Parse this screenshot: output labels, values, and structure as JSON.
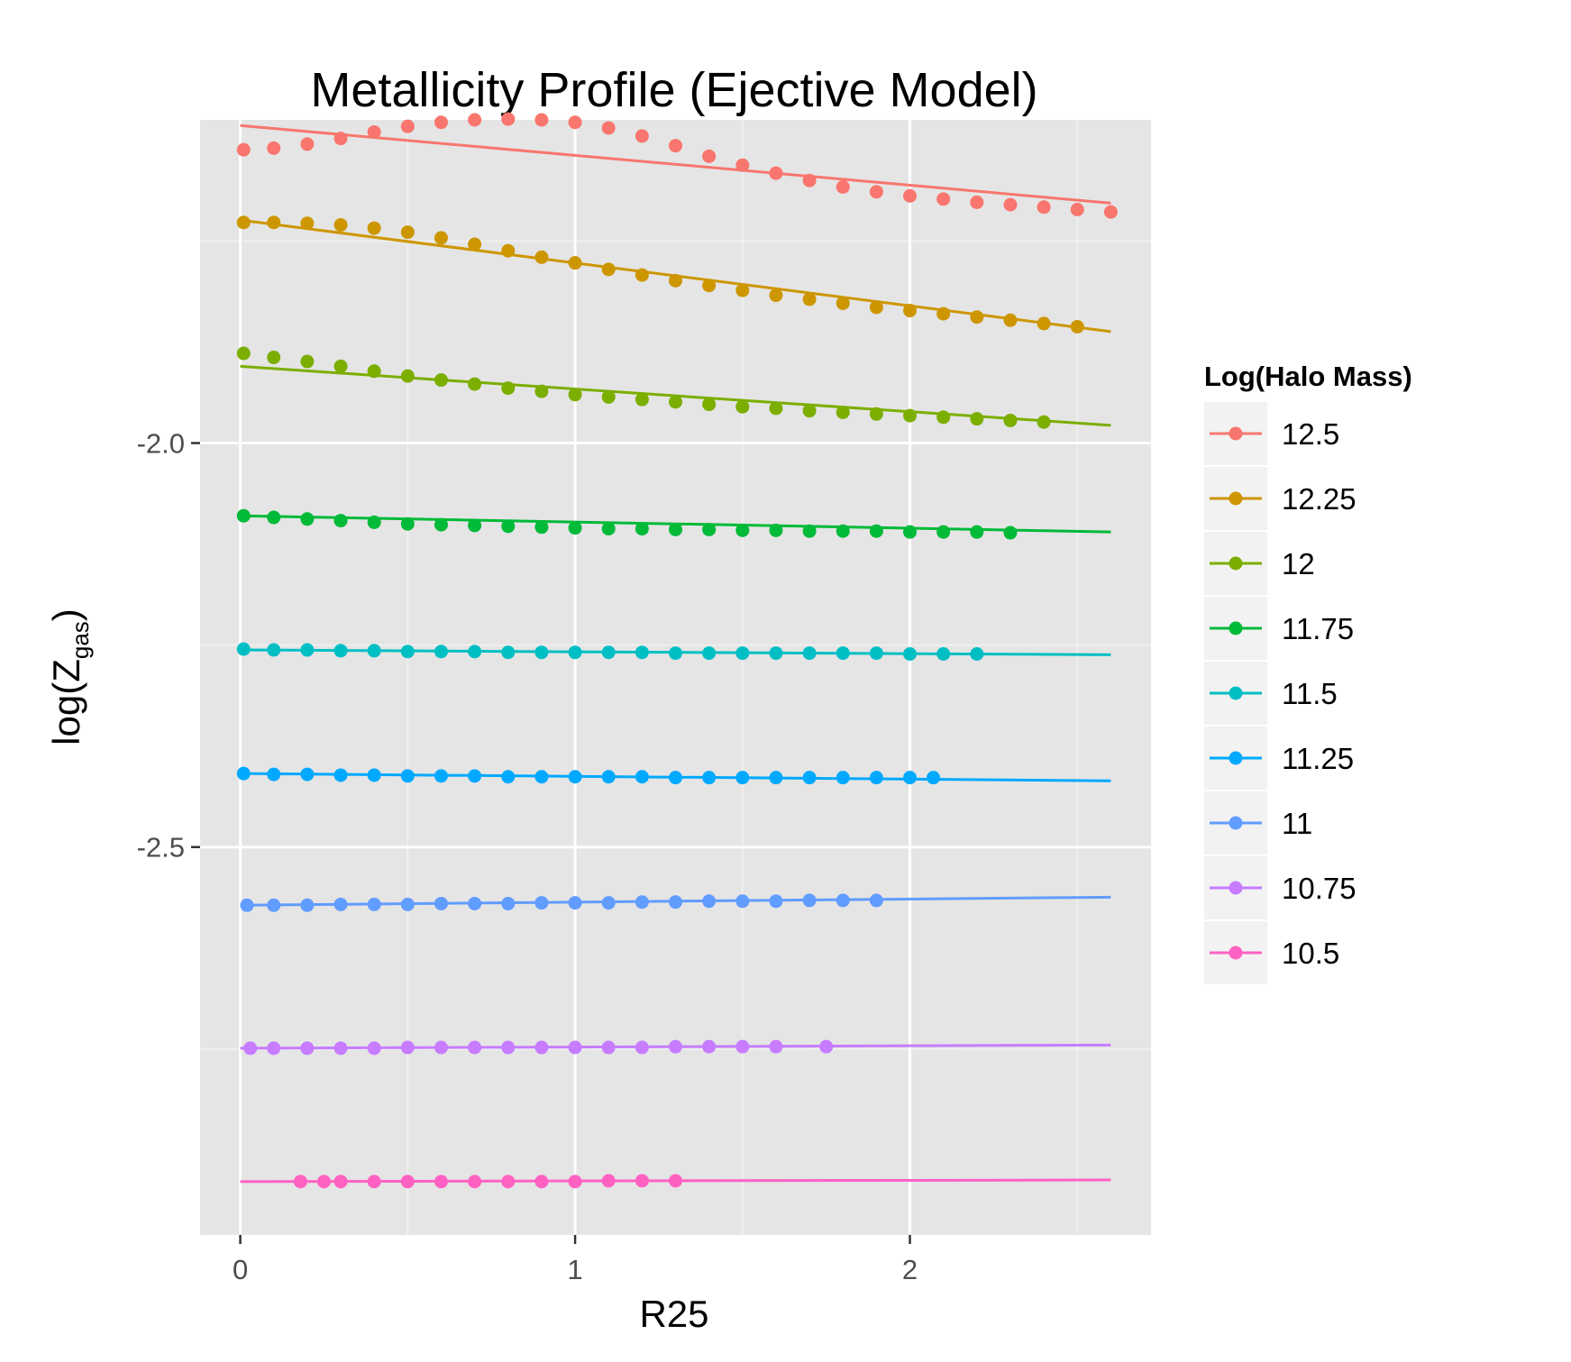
{
  "chart_data": {
    "type": "scatter",
    "title": "Metallicity Profile (Ejective Model)",
    "xlabel": "R25",
    "ylabel": "log(Z",
    "ylabel_sub": "gas",
    "ylabel_close": ")",
    "xlim": [
      -0.12,
      2.72
    ],
    "ylim": [
      -2.98,
      -1.6
    ],
    "x_ticks": [
      0,
      1,
      2
    ],
    "x_tick_labels": [
      "0",
      "1",
      "2"
    ],
    "x_minor_ticks": [
      0.5,
      1.5,
      2.5
    ],
    "y_ticks": [
      -2.0,
      -2.5
    ],
    "y_tick_labels": [
      "-2.0",
      "-2.5"
    ],
    "y_minor_ticks": [
      -1.75,
      -2.25,
      -2.75
    ],
    "grid": true,
    "legend": {
      "title": "Log(Halo Mass)",
      "position": "right"
    },
    "series": [
      {
        "name": "12.5",
        "color": "#F8766D",
        "points": [
          [
            0.01,
            -1.637
          ],
          [
            0.1,
            -1.635
          ],
          [
            0.2,
            -1.63
          ],
          [
            0.3,
            -1.623
          ],
          [
            0.4,
            -1.615
          ],
          [
            0.5,
            -1.608
          ],
          [
            0.6,
            -1.603
          ],
          [
            0.7,
            -1.6
          ],
          [
            0.8,
            -1.599
          ],
          [
            0.9,
            -1.6
          ],
          [
            1.0,
            -1.603
          ],
          [
            1.1,
            -1.61
          ],
          [
            1.2,
            -1.62
          ],
          [
            1.3,
            -1.632
          ],
          [
            1.4,
            -1.645
          ],
          [
            1.5,
            -1.656
          ],
          [
            1.6,
            -1.666
          ],
          [
            1.7,
            -1.675
          ],
          [
            1.8,
            -1.683
          ],
          [
            1.9,
            -1.689
          ],
          [
            2.0,
            -1.694
          ],
          [
            2.1,
            -1.698
          ],
          [
            2.2,
            -1.702
          ],
          [
            2.3,
            -1.705
          ],
          [
            2.4,
            -1.708
          ],
          [
            2.5,
            -1.711
          ],
          [
            2.6,
            -1.714
          ]
        ],
        "fit": [
          [
            0.0,
            -1.607
          ],
          [
            2.6,
            -1.703
          ]
        ]
      },
      {
        "name": "12.25",
        "color": "#CD9600",
        "points": [
          [
            0.01,
            -1.727
          ],
          [
            0.1,
            -1.727
          ],
          [
            0.2,
            -1.728
          ],
          [
            0.3,
            -1.73
          ],
          [
            0.4,
            -1.734
          ],
          [
            0.5,
            -1.739
          ],
          [
            0.6,
            -1.746
          ],
          [
            0.7,
            -1.754
          ],
          [
            0.8,
            -1.762
          ],
          [
            0.9,
            -1.77
          ],
          [
            1.0,
            -1.777
          ],
          [
            1.1,
            -1.785
          ],
          [
            1.2,
            -1.792
          ],
          [
            1.3,
            -1.799
          ],
          [
            1.4,
            -1.805
          ],
          [
            1.5,
            -1.811
          ],
          [
            1.6,
            -1.817
          ],
          [
            1.7,
            -1.822
          ],
          [
            1.8,
            -1.827
          ],
          [
            1.9,
            -1.832
          ],
          [
            2.0,
            -1.836
          ],
          [
            2.1,
            -1.84
          ],
          [
            2.2,
            -1.844
          ],
          [
            2.3,
            -1.848
          ],
          [
            2.4,
            -1.852
          ],
          [
            2.5,
            -1.856
          ]
        ],
        "fit": [
          [
            0.0,
            -1.724
          ],
          [
            2.6,
            -1.862
          ]
        ]
      },
      {
        "name": "12",
        "color": "#7CAE00",
        "points": [
          [
            0.01,
            -1.889
          ],
          [
            0.1,
            -1.894
          ],
          [
            0.2,
            -1.899
          ],
          [
            0.3,
            -1.905
          ],
          [
            0.4,
            -1.911
          ],
          [
            0.5,
            -1.917
          ],
          [
            0.6,
            -1.922
          ],
          [
            0.7,
            -1.927
          ],
          [
            0.8,
            -1.932
          ],
          [
            0.9,
            -1.936
          ],
          [
            1.0,
            -1.94
          ],
          [
            1.1,
            -1.943
          ],
          [
            1.2,
            -1.946
          ],
          [
            1.3,
            -1.949
          ],
          [
            1.4,
            -1.952
          ],
          [
            1.5,
            -1.955
          ],
          [
            1.6,
            -1.957
          ],
          [
            1.7,
            -1.96
          ],
          [
            1.8,
            -1.962
          ],
          [
            1.9,
            -1.964
          ],
          [
            2.0,
            -1.966
          ],
          [
            2.1,
            -1.968
          ],
          [
            2.2,
            -1.97
          ],
          [
            2.3,
            -1.972
          ],
          [
            2.4,
            -1.974
          ]
        ],
        "fit": [
          [
            0.0,
            -1.905
          ],
          [
            2.6,
            -1.978
          ]
        ]
      },
      {
        "name": "11.75",
        "color": "#00BA38",
        "points": [
          [
            0.01,
            -2.09
          ],
          [
            0.1,
            -2.092
          ],
          [
            0.2,
            -2.094
          ],
          [
            0.3,
            -2.096
          ],
          [
            0.4,
            -2.098
          ],
          [
            0.5,
            -2.1
          ],
          [
            0.6,
            -2.101
          ],
          [
            0.7,
            -2.102
          ],
          [
            0.8,
            -2.103
          ],
          [
            0.9,
            -2.104
          ],
          [
            1.0,
            -2.105
          ],
          [
            1.1,
            -2.106
          ],
          [
            1.2,
            -2.106
          ],
          [
            1.3,
            -2.107
          ],
          [
            1.4,
            -2.107
          ],
          [
            1.5,
            -2.108
          ],
          [
            1.6,
            -2.108
          ],
          [
            1.7,
            -2.109
          ],
          [
            1.8,
            -2.109
          ],
          [
            1.9,
            -2.109
          ],
          [
            2.0,
            -2.11
          ],
          [
            2.1,
            -2.11
          ],
          [
            2.2,
            -2.11
          ],
          [
            2.3,
            -2.111
          ]
        ],
        "fit": [
          [
            0.0,
            -2.09
          ],
          [
            2.6,
            -2.11
          ]
        ]
      },
      {
        "name": "11.5",
        "color": "#00BFC4",
        "points": [
          [
            0.01,
            -2.255
          ],
          [
            0.1,
            -2.256
          ],
          [
            0.2,
            -2.256
          ],
          [
            0.3,
            -2.257
          ],
          [
            0.4,
            -2.257
          ],
          [
            0.5,
            -2.258
          ],
          [
            0.6,
            -2.258
          ],
          [
            0.7,
            -2.258
          ],
          [
            0.8,
            -2.259
          ],
          [
            0.9,
            -2.259
          ],
          [
            1.0,
            -2.259
          ],
          [
            1.1,
            -2.259
          ],
          [
            1.2,
            -2.259
          ],
          [
            1.3,
            -2.26
          ],
          [
            1.4,
            -2.26
          ],
          [
            1.5,
            -2.26
          ],
          [
            1.6,
            -2.26
          ],
          [
            1.7,
            -2.26
          ],
          [
            1.8,
            -2.26
          ],
          [
            1.9,
            -2.26
          ],
          [
            2.0,
            -2.261
          ],
          [
            2.1,
            -2.261
          ],
          [
            2.2,
            -2.261
          ]
        ],
        "fit": [
          [
            0.0,
            -2.256
          ],
          [
            2.6,
            -2.262
          ]
        ]
      },
      {
        "name": "11.25",
        "color": "#00A9FF",
        "points": [
          [
            0.01,
            -2.409
          ],
          [
            0.1,
            -2.41
          ],
          [
            0.2,
            -2.41
          ],
          [
            0.3,
            -2.411
          ],
          [
            0.4,
            -2.411
          ],
          [
            0.5,
            -2.412
          ],
          [
            0.6,
            -2.412
          ],
          [
            0.7,
            -2.412
          ],
          [
            0.8,
            -2.413
          ],
          [
            0.9,
            -2.413
          ],
          [
            1.0,
            -2.413
          ],
          [
            1.1,
            -2.413
          ],
          [
            1.2,
            -2.413
          ],
          [
            1.3,
            -2.414
          ],
          [
            1.4,
            -2.414
          ],
          [
            1.5,
            -2.414
          ],
          [
            1.6,
            -2.414
          ],
          [
            1.7,
            -2.414
          ],
          [
            1.8,
            -2.414
          ],
          [
            1.9,
            -2.414
          ],
          [
            2.0,
            -2.414
          ],
          [
            2.07,
            -2.414
          ]
        ],
        "fit": [
          [
            0.0,
            -2.409
          ],
          [
            2.6,
            -2.418
          ]
        ]
      },
      {
        "name": "11",
        "color": "#619CFF",
        "points": [
          [
            0.02,
            -2.572
          ],
          [
            0.1,
            -2.572
          ],
          [
            0.2,
            -2.572
          ],
          [
            0.3,
            -2.571
          ],
          [
            0.4,
            -2.571
          ],
          [
            0.5,
            -2.571
          ],
          [
            0.6,
            -2.57
          ],
          [
            0.7,
            -2.57
          ],
          [
            0.8,
            -2.57
          ],
          [
            0.9,
            -2.569
          ],
          [
            1.0,
            -2.569
          ],
          [
            1.1,
            -2.569
          ],
          [
            1.2,
            -2.568
          ],
          [
            1.3,
            -2.568
          ],
          [
            1.4,
            -2.567
          ],
          [
            1.5,
            -2.567
          ],
          [
            1.6,
            -2.567
          ],
          [
            1.7,
            -2.566
          ],
          [
            1.8,
            -2.566
          ],
          [
            1.9,
            -2.566
          ]
        ],
        "fit": [
          [
            0.0,
            -2.572
          ],
          [
            2.6,
            -2.562
          ]
        ]
      },
      {
        "name": "10.75",
        "color": "#C77CFF",
        "points": [
          [
            0.03,
            -2.749
          ],
          [
            0.1,
            -2.749
          ],
          [
            0.2,
            -2.749
          ],
          [
            0.3,
            -2.749
          ],
          [
            0.4,
            -2.749
          ],
          [
            0.5,
            -2.748
          ],
          [
            0.6,
            -2.748
          ],
          [
            0.7,
            -2.748
          ],
          [
            0.8,
            -2.748
          ],
          [
            0.9,
            -2.748
          ],
          [
            1.0,
            -2.748
          ],
          [
            1.1,
            -2.748
          ],
          [
            1.2,
            -2.748
          ],
          [
            1.3,
            -2.747
          ],
          [
            1.4,
            -2.747
          ],
          [
            1.5,
            -2.747
          ],
          [
            1.6,
            -2.747
          ],
          [
            1.75,
            -2.747
          ]
        ],
        "fit": [
          [
            0.0,
            -2.749
          ],
          [
            2.6,
            -2.745
          ]
        ]
      },
      {
        "name": "10.5",
        "color": "#FF61C3",
        "points": [
          [
            0.18,
            -2.914
          ],
          [
            0.25,
            -2.914
          ],
          [
            0.3,
            -2.914
          ],
          [
            0.4,
            -2.914
          ],
          [
            0.5,
            -2.914
          ],
          [
            0.6,
            -2.914
          ],
          [
            0.7,
            -2.914
          ],
          [
            0.8,
            -2.914
          ],
          [
            0.9,
            -2.914
          ],
          [
            1.0,
            -2.914
          ],
          [
            1.1,
            -2.913
          ],
          [
            1.2,
            -2.913
          ],
          [
            1.3,
            -2.913
          ]
        ],
        "fit": [
          [
            0.0,
            -2.914
          ],
          [
            2.6,
            -2.912
          ]
        ]
      }
    ]
  }
}
